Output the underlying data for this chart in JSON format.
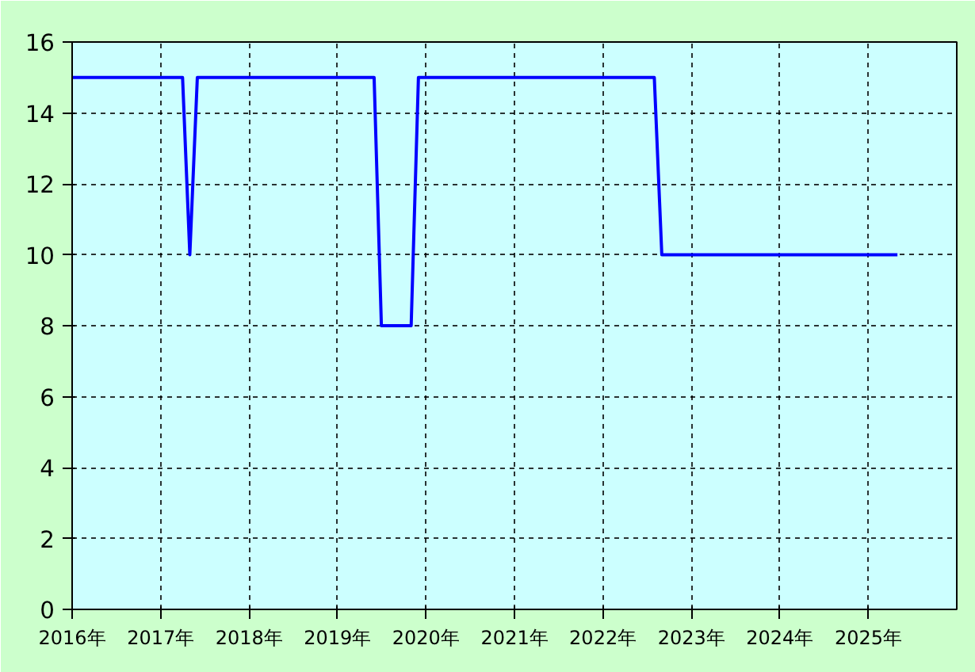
{
  "chart_data": {
    "type": "line",
    "x": [
      "2016-01",
      "2017-04",
      "2017-05",
      "2017-06",
      "2019-06",
      "2019-07",
      "2019-11",
      "2019-12",
      "2022-08",
      "2022-09",
      "2025-05"
    ],
    "series": [
      {
        "color": "#0000ff",
        "values": [
          15,
          15,
          10,
          15,
          15,
          8,
          8,
          15,
          15,
          10,
          10
        ]
      }
    ],
    "xlim": [
      "2016",
      "2026"
    ],
    "xticks": [
      {
        "value": "2016",
        "label": "2016年"
      },
      {
        "value": "2017",
        "label": "2017年"
      },
      {
        "value": "2018",
        "label": "2018年"
      },
      {
        "value": "2019",
        "label": "2019年"
      },
      {
        "value": "2020",
        "label": "2020年"
      },
      {
        "value": "2021",
        "label": "2021年"
      },
      {
        "value": "2022",
        "label": "2022年"
      },
      {
        "value": "2023",
        "label": "2023年"
      },
      {
        "value": "2024",
        "label": "2024年"
      },
      {
        "value": "2025",
        "label": "2025年"
      }
    ],
    "ylim": [
      0,
      16
    ],
    "yticks": [
      0,
      2,
      4,
      6,
      8,
      10,
      12,
      14,
      16
    ],
    "grid": true,
    "marker": "none",
    "line_style": "solid"
  }
}
